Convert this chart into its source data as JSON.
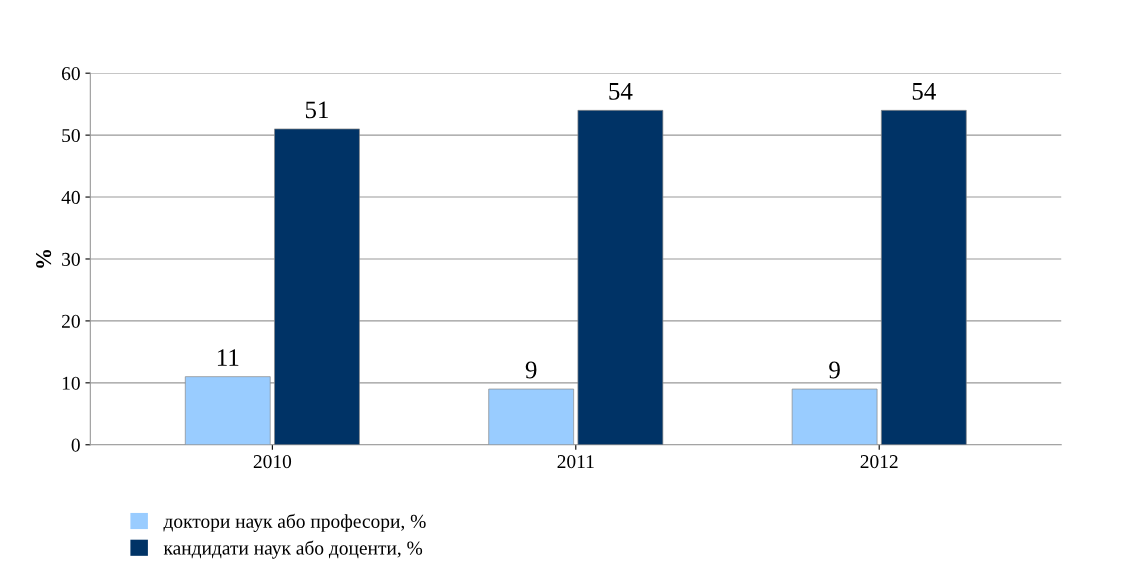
{
  "chart_data": {
    "type": "bar",
    "ylabel": "%",
    "categories": [
      "2010",
      "2011",
      "2012"
    ],
    "series": [
      {
        "name": "доктори наук або професори, %",
        "color": "#99ccff",
        "values": [
          11,
          9,
          9
        ]
      },
      {
        "name": "кандидати наук або доценти, %",
        "color": "#003366",
        "values": [
          51,
          54,
          54
        ]
      }
    ],
    "ylim": [
      0,
      60
    ],
    "yticks": [
      0,
      10,
      20,
      30,
      40,
      50,
      60
    ],
    "grid": "y",
    "legend": "bottom left",
    "data_labels": true
  }
}
